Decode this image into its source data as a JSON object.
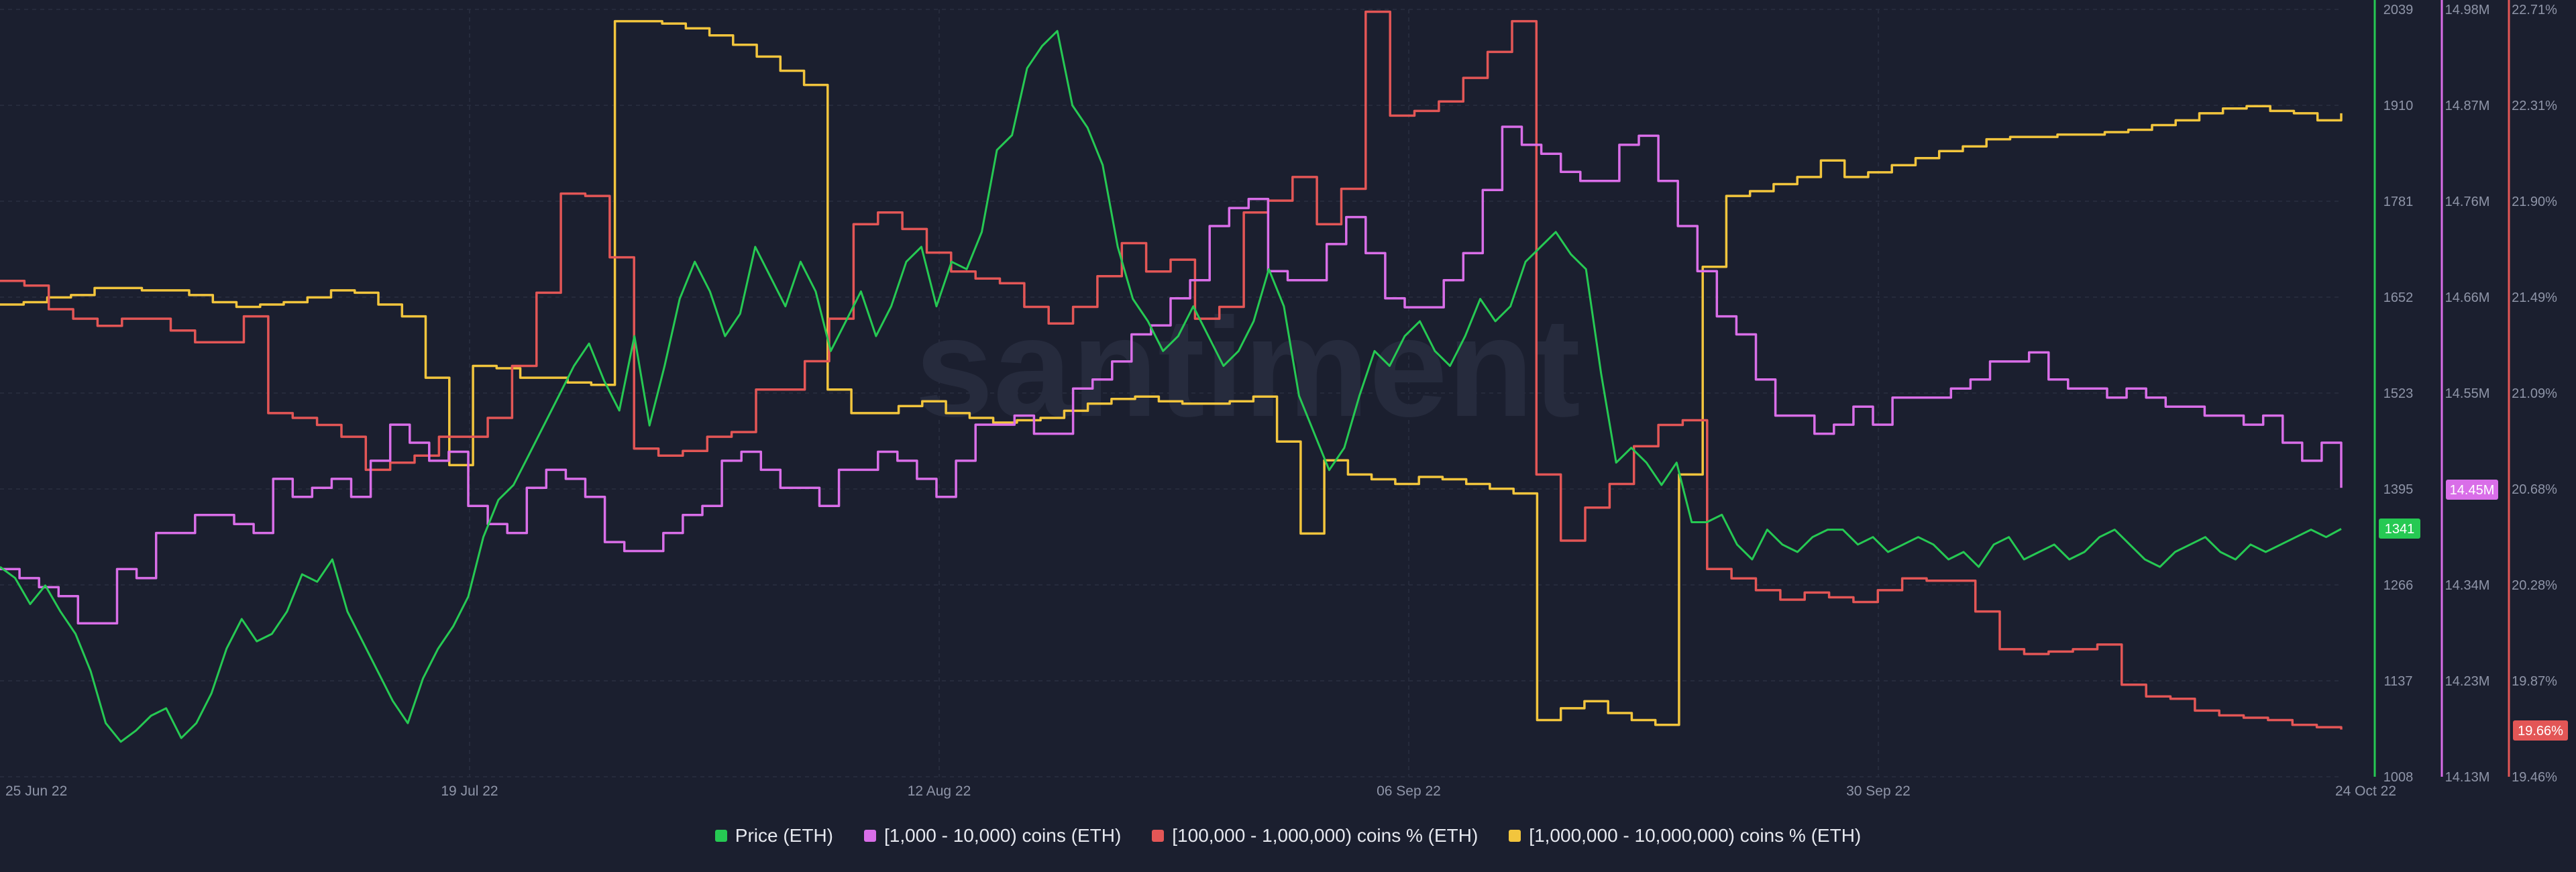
{
  "watermark": "santiment",
  "colors": {
    "background": "#1b1f2f",
    "grid": "#262b3c",
    "price": "#26c953",
    "mid_holders": "#d96ee8",
    "large_holders": "#e35656",
    "whale_holders": "#f2c53d"
  },
  "legend": [
    {
      "label": "Price (ETH)",
      "color": "#26c953"
    },
    {
      "label": "[1,000 - 10,000) coins (ETH)",
      "color": "#d96ee8"
    },
    {
      "label": "[100,000  - 1,000,000) coins % (ETH)",
      "color": "#e35656"
    },
    {
      "label": "[1,000,000 - 10,000,000) coins % (ETH)",
      "color": "#f2c53d"
    }
  ],
  "chart_data": {
    "type": "line",
    "x_labels": [
      "25 Jun 22",
      "19 Jul 22",
      "12 Aug 22",
      "06 Sep 22",
      "30 Sep 22",
      "24 Oct 22"
    ],
    "axes": {
      "price": {
        "ticks": [
          "2039",
          "1910",
          "1781",
          "1652",
          "1523",
          "1395",
          "1266",
          "1137",
          "1008"
        ],
        "ylim": [
          1008,
          2039
        ],
        "current_label": "1341"
      },
      "mid_holders": {
        "ticks": [
          "14.98M",
          "14.87M",
          "14.76M",
          "14.66M",
          "14.55M",
          "14.45M",
          "14.34M",
          "14.23M",
          "14.13M"
        ],
        "ylim": [
          14.13,
          14.98
        ],
        "current_label": "14.45M"
      },
      "pct": {
        "ticks": [
          "22.71%",
          "22.31%",
          "21.90%",
          "21.49%",
          "21.09%",
          "20.68%",
          "20.28%",
          "19.87%",
          "19.46%"
        ],
        "ylim": [
          19.46,
          22.71
        ],
        "current_label": "19.66%"
      }
    },
    "series": [
      {
        "name": "Price (ETH)",
        "axis": "price",
        "values": [
          1290,
          1275,
          1240,
          1265,
          1230,
          1200,
          1150,
          1080,
          1055,
          1070,
          1090,
          1100,
          1060,
          1080,
          1120,
          1180,
          1220,
          1190,
          1200,
          1230,
          1280,
          1270,
          1300,
          1230,
          1190,
          1150,
          1110,
          1080,
          1140,
          1180,
          1210,
          1250,
          1330,
          1380,
          1400,
          1440,
          1480,
          1520,
          1560,
          1590,
          1540,
          1500,
          1600,
          1480,
          1560,
          1650,
          1700,
          1660,
          1600,
          1630,
          1720,
          1680,
          1640,
          1700,
          1660,
          1580,
          1620,
          1660,
          1600,
          1640,
          1700,
          1720,
          1640,
          1700,
          1690,
          1740,
          1850,
          1870,
          1960,
          1990,
          2010,
          1910,
          1880,
          1830,
          1720,
          1650,
          1620,
          1580,
          1600,
          1640,
          1600,
          1560,
          1580,
          1620,
          1690,
          1640,
          1520,
          1470,
          1420,
          1450,
          1520,
          1580,
          1560,
          1600,
          1620,
          1580,
          1560,
          1600,
          1650,
          1620,
          1640,
          1700,
          1720,
          1740,
          1710,
          1690,
          1550,
          1430,
          1450,
          1430,
          1400,
          1430,
          1350,
          1350,
          1360,
          1320,
          1300,
          1340,
          1320,
          1310,
          1330,
          1340,
          1340,
          1320,
          1330,
          1310,
          1320,
          1330,
          1320,
          1300,
          1310,
          1290,
          1320,
          1330,
          1300,
          1310,
          1320,
          1300,
          1310,
          1330,
          1340,
          1320,
          1300,
          1290,
          1310,
          1320,
          1330,
          1310,
          1300,
          1320,
          1310,
          1320,
          1330,
          1340,
          1330,
          1341
        ]
      },
      {
        "name": "[1,000 - 10,000) coins (ETH)",
        "axis": "mid_holders",
        "values": [
          14.36,
          14.35,
          14.34,
          14.33,
          14.3,
          14.3,
          14.36,
          14.35,
          14.4,
          14.4,
          14.42,
          14.42,
          14.41,
          14.4,
          14.46,
          14.44,
          14.45,
          14.46,
          14.44,
          14.48,
          14.52,
          14.5,
          14.48,
          14.49,
          14.43,
          14.41,
          14.4,
          14.45,
          14.47,
          14.46,
          14.44,
          14.39,
          14.38,
          14.38,
          14.4,
          14.42,
          14.43,
          14.48,
          14.49,
          14.47,
          14.45,
          14.45,
          14.43,
          14.47,
          14.47,
          14.49,
          14.48,
          14.46,
          14.44,
          14.48,
          14.52,
          14.52,
          14.53,
          14.51,
          14.51,
          14.56,
          14.57,
          14.59,
          14.62,
          14.63,
          14.66,
          14.68,
          14.74,
          14.76,
          14.77,
          14.69,
          14.68,
          14.68,
          14.72,
          14.75,
          14.71,
          14.66,
          14.65,
          14.65,
          14.68,
          14.71,
          14.78,
          14.85,
          14.83,
          14.82,
          14.8,
          14.79,
          14.79,
          14.83,
          14.84,
          14.79,
          14.74,
          14.69,
          14.64,
          14.62,
          14.57,
          14.53,
          14.53,
          14.51,
          14.52,
          14.54,
          14.52,
          14.55,
          14.55,
          14.55,
          14.56,
          14.57,
          14.59,
          14.59,
          14.6,
          14.57,
          14.56,
          14.56,
          14.55,
          14.56,
          14.55,
          14.54,
          14.54,
          14.53,
          14.53,
          14.52,
          14.53,
          14.5,
          14.48,
          14.5,
          14.45
        ]
      },
      {
        "name": "[100,000  - 1,000,000) coins % (ETH)",
        "axis": "pct",
        "values": [
          21.56,
          21.54,
          21.44,
          21.4,
          21.37,
          21.4,
          21.4,
          21.35,
          21.3,
          21.3,
          21.41,
          21.0,
          20.98,
          20.95,
          20.9,
          20.76,
          20.79,
          20.82,
          20.9,
          20.9,
          20.98,
          21.2,
          21.51,
          21.93,
          21.92,
          21.66,
          20.85,
          20.82,
          20.84,
          20.9,
          20.92,
          21.1,
          21.1,
          21.22,
          21.4,
          21.8,
          21.85,
          21.78,
          21.68,
          21.6,
          21.57,
          21.55,
          21.45,
          21.38,
          21.45,
          21.58,
          21.72,
          21.6,
          21.65,
          21.4,
          21.45,
          21.85,
          21.9,
          22.0,
          21.8,
          21.95,
          22.7,
          22.26,
          22.28,
          22.32,
          22.42,
          22.53,
          22.66,
          20.74,
          20.46,
          20.6,
          20.7,
          20.86,
          20.95,
          20.97,
          20.34,
          20.3,
          20.25,
          20.21,
          20.24,
          20.22,
          20.2,
          20.25,
          20.3,
          20.29,
          20.29,
          20.16,
          20.0,
          19.98,
          19.99,
          20.0,
          20.02,
          19.85,
          19.8,
          19.79,
          19.74,
          19.72,
          19.71,
          19.7,
          19.68,
          19.67,
          19.66
        ]
      },
      {
        "name": "[1,000,000 - 10,000,000) coins % (ETH)",
        "axis": "pct",
        "values": [
          21.46,
          21.47,
          21.49,
          21.5,
          21.53,
          21.53,
          21.52,
          21.52,
          21.5,
          21.47,
          21.45,
          21.46,
          21.47,
          21.49,
          21.52,
          21.51,
          21.46,
          21.41,
          21.15,
          20.78,
          21.2,
          21.19,
          21.15,
          21.15,
          21.13,
          21.12,
          22.66,
          22.66,
          22.65,
          22.63,
          22.6,
          22.56,
          22.51,
          22.45,
          22.39,
          21.1,
          21.0,
          21.0,
          21.03,
          21.05,
          21.0,
          20.98,
          20.96,
          20.97,
          20.98,
          21.01,
          21.04,
          21.06,
          21.07,
          21.05,
          21.04,
          21.04,
          21.05,
          21.07,
          20.88,
          20.49,
          20.8,
          20.74,
          20.72,
          20.7,
          20.73,
          20.72,
          20.7,
          20.68,
          20.66,
          19.7,
          19.75,
          19.78,
          19.73,
          19.7,
          19.68,
          20.74,
          21.62,
          21.92,
          21.94,
          21.97,
          22.0,
          22.07,
          22.0,
          22.02,
          22.05,
          22.08,
          22.11,
          22.13,
          22.16,
          22.17,
          22.17,
          22.18,
          22.18,
          22.19,
          22.2,
          22.22,
          22.24,
          22.27,
          22.29,
          22.3,
          22.28,
          22.27,
          22.24,
          22.27
        ]
      }
    ]
  }
}
